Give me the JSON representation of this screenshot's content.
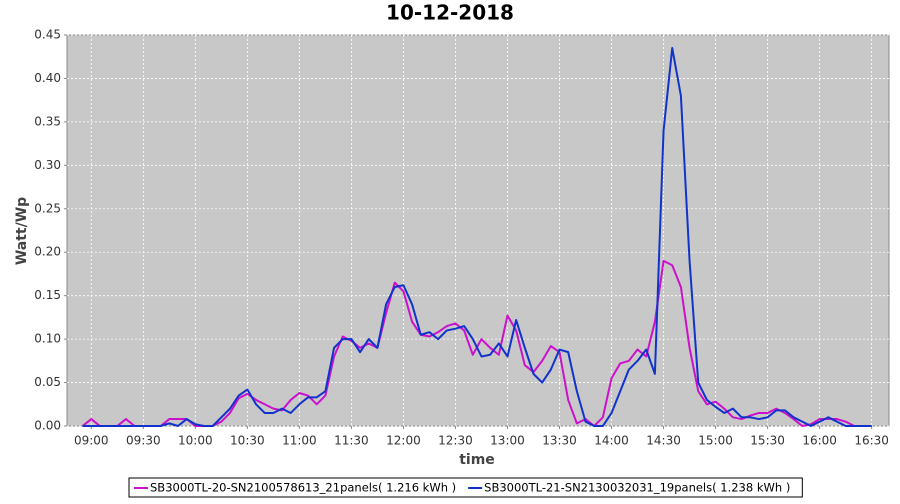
{
  "chart_data": {
    "type": "line",
    "title": "10-12-2018",
    "xlabel": "time",
    "ylabel": "Watt/Wp",
    "x": [
      "08:55",
      "09:00",
      "09:05",
      "09:10",
      "09:15",
      "09:20",
      "09:25",
      "09:30",
      "09:35",
      "09:40",
      "09:45",
      "09:50",
      "09:55",
      "10:00",
      "10:05",
      "10:10",
      "10:15",
      "10:20",
      "10:25",
      "10:30",
      "10:35",
      "10:40",
      "10:45",
      "10:50",
      "10:55",
      "11:00",
      "11:05",
      "11:10",
      "11:15",
      "11:20",
      "11:25",
      "11:30",
      "11:35",
      "11:40",
      "11:45",
      "11:50",
      "11:55",
      "12:00",
      "12:05",
      "12:10",
      "12:15",
      "12:20",
      "12:25",
      "12:30",
      "12:35",
      "12:40",
      "12:45",
      "12:50",
      "12:55",
      "13:00",
      "13:05",
      "13:10",
      "13:15",
      "13:20",
      "13:25",
      "13:30",
      "13:35",
      "13:40",
      "13:45",
      "13:50",
      "13:55",
      "14:00",
      "14:05",
      "14:10",
      "14:15",
      "14:20",
      "14:25",
      "14:30",
      "14:35",
      "14:40",
      "14:45",
      "14:50",
      "14:55",
      "15:00",
      "15:05",
      "15:10",
      "15:15",
      "15:20",
      "15:25",
      "15:30",
      "15:35",
      "15:40",
      "15:45",
      "15:50",
      "15:55",
      "16:00",
      "16:05",
      "16:10",
      "16:15",
      "16:20",
      "16:25",
      "16:30"
    ],
    "series": [
      {
        "name": "SB3000TL-20-SN2100578613_21panels( 1.216 kWh )",
        "color": "#cc11cc",
        "values": [
          0,
          0.008,
          0,
          0,
          0,
          0.008,
          0,
          0,
          0,
          0,
          0.008,
          0.008,
          0.008,
          0,
          0,
          0,
          0.005,
          0.015,
          0.032,
          0.037,
          0.03,
          0.025,
          0.02,
          0.018,
          0.03,
          0.038,
          0.035,
          0.025,
          0.035,
          0.08,
          0.103,
          0.098,
          0.09,
          0.095,
          0.09,
          0.13,
          0.165,
          0.155,
          0.12,
          0.105,
          0.103,
          0.108,
          0.115,
          0.118,
          0.11,
          0.082,
          0.1,
          0.09,
          0.082,
          0.127,
          0.11,
          0.07,
          0.062,
          0.075,
          0.092,
          0.085,
          0.03,
          0.003,
          0.008,
          0,
          0.01,
          0.055,
          0.072,
          0.075,
          0.088,
          0.08,
          0.12,
          0.19,
          0.185,
          0.16,
          0.09,
          0.04,
          0.025,
          0.028,
          0.02,
          0.01,
          0.008,
          0.012,
          0.015,
          0.015,
          0.02,
          0.015,
          0.008,
          0,
          0.002,
          0.008,
          0.008,
          0.008,
          0.005,
          0,
          0,
          0
        ]
      },
      {
        "name": "SB3000TL-21-SN2130032031_19panels( 1.238 kWh )",
        "color": "#1133cc",
        "values": [
          0,
          0,
          0,
          0,
          0,
          0,
          0,
          0,
          0,
          0,
          0.003,
          0,
          0.008,
          0.002,
          0,
          0,
          0.01,
          0.02,
          0.035,
          0.042,
          0.025,
          0.015,
          0.015,
          0.02,
          0.015,
          0.025,
          0.033,
          0.033,
          0.04,
          0.09,
          0.1,
          0.1,
          0.085,
          0.1,
          0.09,
          0.14,
          0.16,
          0.162,
          0.14,
          0.105,
          0.108,
          0.1,
          0.11,
          0.112,
          0.115,
          0.1,
          0.08,
          0.082,
          0.095,
          0.08,
          0.122,
          0.09,
          0.06,
          0.05,
          0.065,
          0.088,
          0.085,
          0.04,
          0.005,
          0,
          0,
          0.015,
          0.04,
          0.065,
          0.075,
          0.088,
          0.06,
          0.34,
          0.435,
          0.38,
          0.19,
          0.05,
          0.03,
          0.022,
          0.015,
          0.02,
          0.01,
          0.01,
          0.008,
          0.01,
          0.018,
          0.018,
          0.01,
          0.005,
          0,
          0.005,
          0.01,
          0.005,
          0,
          0,
          0,
          0
        ]
      }
    ],
    "xlim": [
      "08:46",
      "16:40"
    ],
    "xticks": [
      "09:00",
      "09:30",
      "10:00",
      "10:30",
      "11:00",
      "11:30",
      "12:00",
      "12:30",
      "13:00",
      "13:30",
      "14:00",
      "14:30",
      "15:00",
      "15:30",
      "16:00",
      "16:30"
    ],
    "ylim": [
      0,
      0.45
    ],
    "yticks": [
      {
        "value": 0,
        "label": "0.00"
      },
      0.05,
      {
        "value": 0.1,
        "label": "0.10"
      },
      0.15,
      {
        "value": 0.2,
        "label": "0.20"
      },
      0.25,
      {
        "value": 0.3,
        "label": "0.30"
      },
      0.35,
      {
        "value": 0.4,
        "label": "0.40"
      },
      0.45
    ],
    "grid": true,
    "legend": "bottom",
    "background": "#c8c8c8"
  }
}
